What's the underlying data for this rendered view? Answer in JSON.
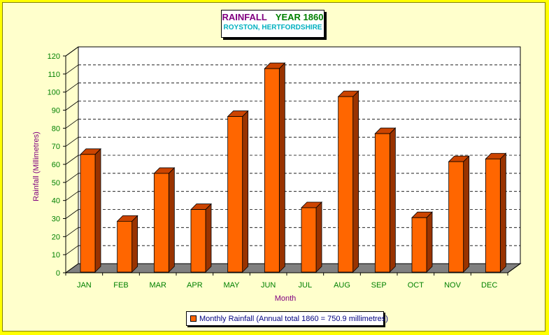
{
  "chart_data": {
    "type": "bar",
    "title_part1": "RAINFALL",
    "title_part2": "YEAR 1860",
    "subtitle": "ROYSTON, HERTFORDSHIRE",
    "xlabel": "Month",
    "ylabel": "Rainfall (Millimetres)",
    "categories": [
      "JAN",
      "FEB",
      "MAR",
      "APR",
      "MAY",
      "JUN",
      "JUL",
      "AUG",
      "SEP",
      "OCT",
      "NOV",
      "DEC"
    ],
    "series": [
      {
        "name": "Monthly Rainfall (Annual total 1860 = 750.9 millimetres)",
        "values": [
          65.5,
          28.5,
          55.0,
          35.0,
          86.5,
          113.0,
          36.0,
          97.5,
          77.0,
          30.5,
          61.5,
          63.0
        ]
      }
    ],
    "ylim": [
      0,
      120
    ],
    "yticks": [
      0,
      10,
      20,
      30,
      40,
      50,
      60,
      70,
      80,
      90,
      100,
      110,
      120
    ],
    "grid": true,
    "legend_position": "bottom",
    "colors": {
      "bar_front": "#ff6600",
      "bar_side": "#993300",
      "bar_top": "#cc4400",
      "floor": "#808080",
      "axis_text": "#008000",
      "axis_title": "#800080",
      "background": "#ffffcc",
      "border": "#ffff00"
    }
  }
}
